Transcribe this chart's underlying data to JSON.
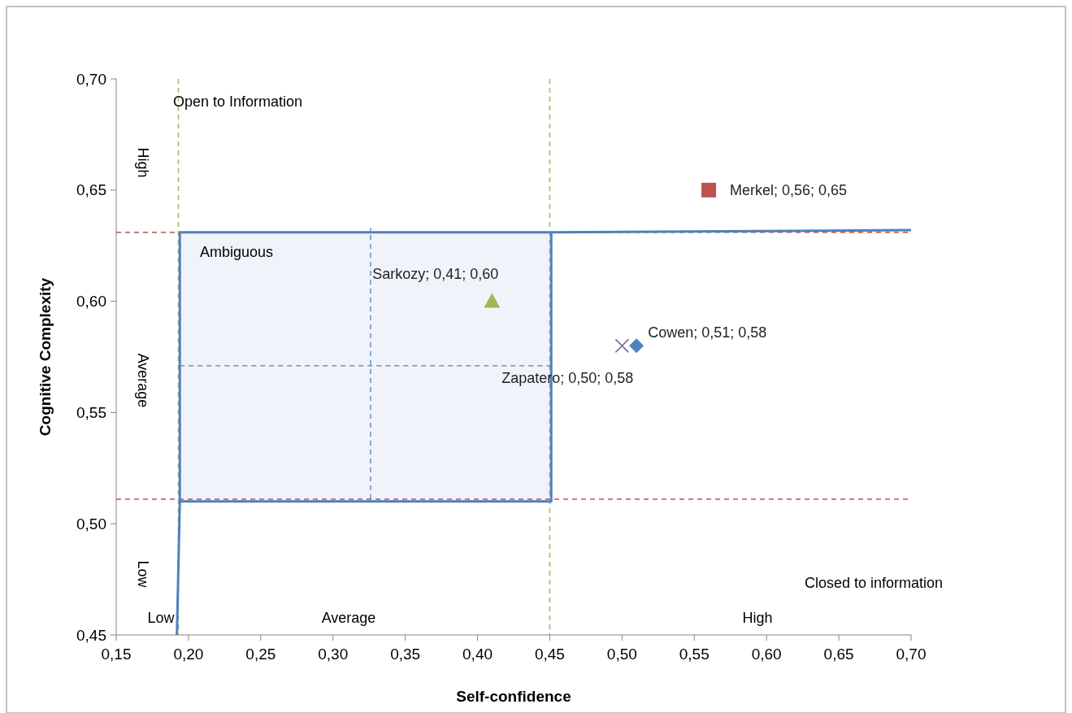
{
  "chart_data": {
    "type": "scatter",
    "xlabel": "Self-confidence",
    "ylabel": "Cognitive Complexity",
    "xlim": [
      0.15,
      0.7
    ],
    "ylim": [
      0.45,
      0.7
    ],
    "xticks": [
      {
        "value": 0.15,
        "label": "0,15"
      },
      {
        "value": 0.2,
        "label": "0,20"
      },
      {
        "value": 0.25,
        "label": "0,25"
      },
      {
        "value": 0.3,
        "label": "0,30"
      },
      {
        "value": 0.35,
        "label": "0,35"
      },
      {
        "value": 0.4,
        "label": "0,40"
      },
      {
        "value": 0.45,
        "label": "0,45"
      },
      {
        "value": 0.5,
        "label": "0,50"
      },
      {
        "value": 0.55,
        "label": "0,55"
      },
      {
        "value": 0.6,
        "label": "0,60"
      },
      {
        "value": 0.65,
        "label": "0,65"
      },
      {
        "value": 0.7,
        "label": "0,70"
      }
    ],
    "yticks": [
      {
        "value": 0.45,
        "label": "0,45"
      },
      {
        "value": 0.5,
        "label": "0,50"
      },
      {
        "value": 0.55,
        "label": "0,55"
      },
      {
        "value": 0.6,
        "label": "0,60"
      },
      {
        "value": 0.65,
        "label": "0,65"
      },
      {
        "value": 0.7,
        "label": "0,70"
      }
    ],
    "grid": false,
    "series": [
      {
        "type": "line",
        "color": "#4f81bd",
        "marker": "none",
        "line_style": "solid",
        "x": [
          0.192,
          0.194,
          0.194,
          0.451,
          0.451,
          0.194,
          0.451,
          0.451,
          0.7
        ],
        "values": [
          0.45,
          0.51,
          0.631,
          0.631,
          0.51,
          0.51,
          0.51,
          0.631,
          0.632
        ]
      },
      {
        "type": "line",
        "color": "#4f81bd",
        "marker": "none",
        "line_style": "dashed",
        "x": [
          0.326,
          0.326
        ],
        "values": [
          0.511,
          0.633
        ]
      },
      {
        "type": "line",
        "color": "#4f81bd",
        "marker": "none",
        "line_style": "dashed",
        "x": [
          0.194,
          0.45
        ],
        "values": [
          0.571,
          0.571
        ]
      },
      {
        "color": "#c0504d",
        "marker": "square",
        "x": [
          0.56
        ],
        "values": [
          0.65
        ],
        "value_labels": [
          "Merkel; 0,56; 0,65"
        ]
      },
      {
        "color": "#9bbb59",
        "marker": "triangle",
        "x": [
          0.41
        ],
        "values": [
          0.6
        ],
        "value_labels": [
          "Sarkozy; 0,41; 0,60"
        ]
      },
      {
        "color": "#4f81bd",
        "marker": "diamond",
        "x": [
          0.51
        ],
        "values": [
          0.58
        ],
        "value_labels": [
          "Cowen; 0,51; 0,58"
        ]
      },
      {
        "color": "#8064a2",
        "marker": "cross",
        "x": [
          0.5
        ],
        "values": [
          0.58
        ],
        "value_labels": [
          "Zapatero; 0,50; 0,58"
        ]
      }
    ],
    "ref_lines": [
      {
        "axis": "y",
        "value": 0.631,
        "color": "#c0504d",
        "line_style": "dashed"
      },
      {
        "axis": "y",
        "value": 0.511,
        "color": "#c0504d",
        "line_style": "dashed"
      },
      {
        "axis": "x",
        "value": 0.193,
        "color": "#9bbb59",
        "line_style": "dashed"
      },
      {
        "axis": "x",
        "value": 0.45,
        "color": "#9bbb59",
        "line_style": "dashed"
      }
    ],
    "annotations": [
      "Open to Information",
      "Ambiguous",
      "Closed to information",
      "High",
      "Average",
      "Low",
      "Low",
      "Average",
      "High"
    ]
  }
}
